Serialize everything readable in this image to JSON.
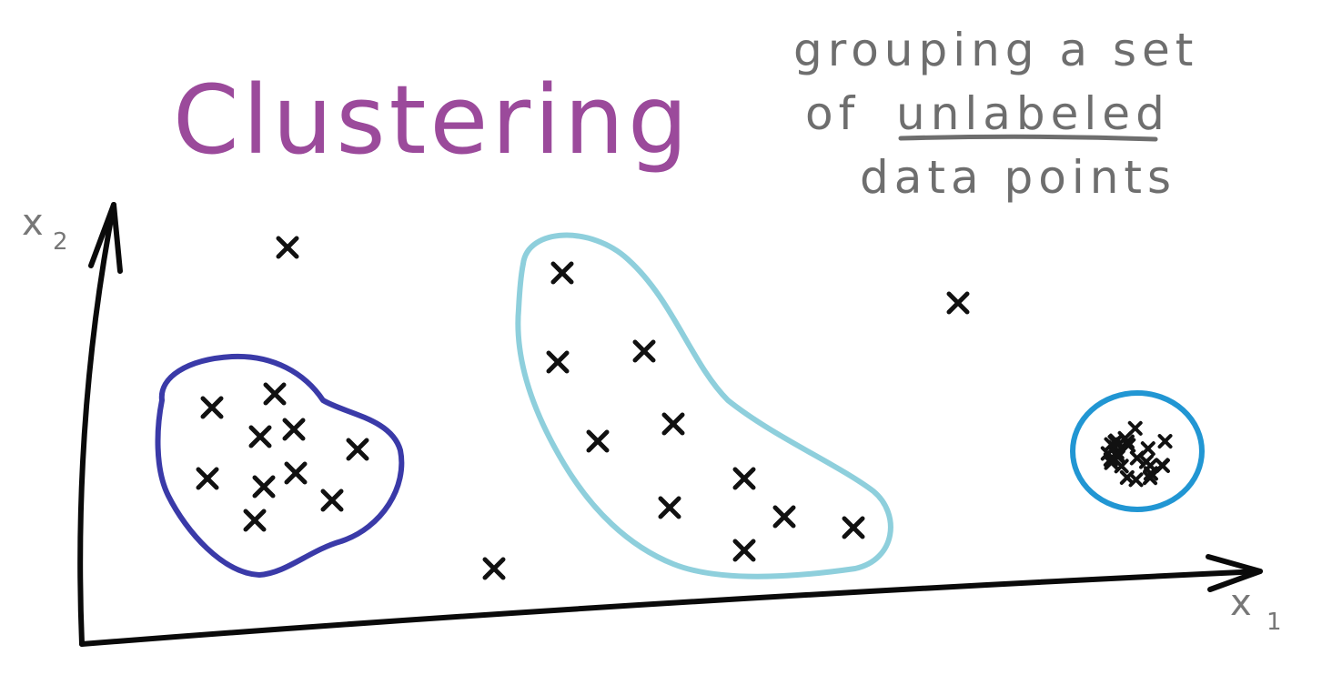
{
  "title": "Clustering",
  "definition": {
    "line1": "grouping a set",
    "line2_prefix": "of",
    "line2_emphasis": "unlabeled",
    "line3": "data points"
  },
  "axes": {
    "x_label": "x",
    "x_sub": "1",
    "y_label": "x",
    "y_sub": "2"
  },
  "colors": {
    "title": "#9b4a9b",
    "definition": "#6e6e6e",
    "axes": "#0a0a0a",
    "cluster_1": "#3a3aa8",
    "cluster_2": "#8ecfdc",
    "cluster_3": "#2196d3",
    "points": "#111111"
  },
  "clusters": [
    {
      "name": "cluster-1",
      "color_key": "cluster_1"
    },
    {
      "name": "cluster-2",
      "color_key": "cluster_2"
    },
    {
      "name": "cluster-3",
      "color_key": "cluster_3"
    }
  ]
}
